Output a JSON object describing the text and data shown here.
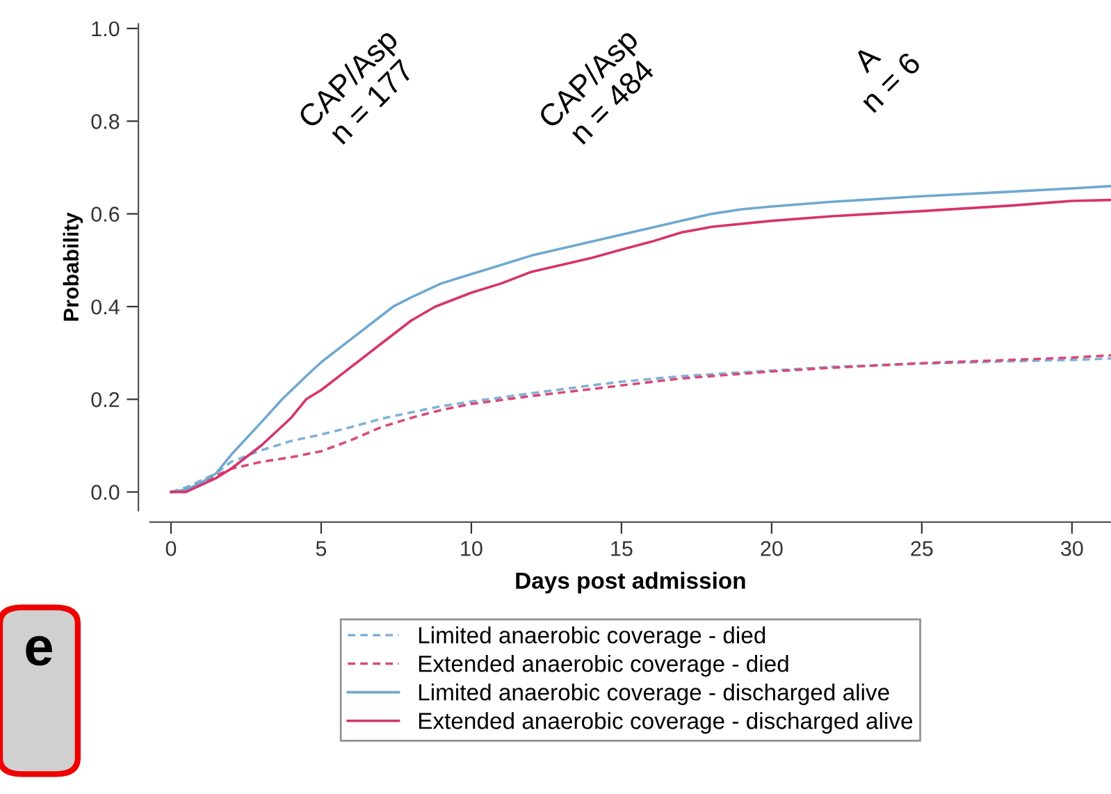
{
  "chart_data": {
    "type": "line",
    "xlabel": "Days post admission",
    "ylabel": "Probability",
    "xlim": [
      -0.7,
      31.3
    ],
    "ylim": [
      -0.04,
      1.01
    ],
    "xticks": [
      0,
      5,
      10,
      15,
      20,
      25,
      30
    ],
    "yticks": [
      {
        "value": 0,
        "label": "0.0"
      },
      {
        "value": 0.2,
        "label": "0.2"
      },
      {
        "value": 0.4,
        "label": "0.4"
      },
      {
        "value": 0.6,
        "label": "0.6"
      },
      {
        "value": 0.8,
        "label": "0.8"
      },
      {
        "value": 1,
        "label": "1.0"
      }
    ],
    "grid": false,
    "legend": "bottom",
    "marker": "none",
    "annotations": [
      "CAP/Asp\nn = 177",
      "CAP/Asp\nn = 484",
      "A\nn = 6",
      "e"
    ],
    "series": [
      {
        "name": "Limited anaerobic coverage - died",
        "color": "#7fb2d8",
        "line_style": "dashed",
        "x": [
          0,
          0.5,
          1,
          1.5,
          2,
          3,
          4,
          5,
          6,
          7,
          8,
          9,
          10,
          12,
          14,
          15,
          17,
          20,
          22,
          25,
          28,
          30,
          31.3
        ],
        "values": [
          0,
          0.01,
          0.025,
          0.04,
          0.065,
          0.09,
          0.11,
          0.124,
          0.14,
          0.158,
          0.172,
          0.185,
          0.195,
          0.213,
          0.23,
          0.238,
          0.25,
          0.262,
          0.27,
          0.277,
          0.282,
          0.285,
          0.288
        ]
      },
      {
        "name": "Extended anaerobic coverage - died",
        "color": "#d8497a",
        "line_style": "dashed",
        "x": [
          0,
          0.5,
          1,
          1.5,
          2,
          3,
          4,
          5,
          6,
          7,
          8,
          9,
          10,
          12,
          14,
          15,
          17,
          20,
          22,
          25,
          28,
          30,
          31.3
        ],
        "values": [
          0,
          0.005,
          0.02,
          0.035,
          0.05,
          0.065,
          0.075,
          0.088,
          0.112,
          0.14,
          0.16,
          0.177,
          0.19,
          0.207,
          0.222,
          0.23,
          0.245,
          0.26,
          0.268,
          0.278,
          0.285,
          0.29,
          0.295
        ]
      },
      {
        "name": "Limited anaerobic coverage - discharged alive",
        "color": "#6fa8d0",
        "line_style": "solid",
        "x": [
          0,
          0.5,
          1,
          1.5,
          2,
          3,
          3.7,
          4.5,
          5,
          6,
          7,
          7.4,
          8,
          9,
          10,
          11,
          12,
          13,
          14,
          15,
          16,
          17,
          18,
          19,
          20,
          22,
          25,
          28,
          30,
          31.3
        ],
        "values": [
          0,
          0.005,
          0.02,
          0.04,
          0.08,
          0.15,
          0.2,
          0.25,
          0.28,
          0.33,
          0.38,
          0.4,
          0.42,
          0.45,
          0.47,
          0.49,
          0.51,
          0.525,
          0.54,
          0.555,
          0.57,
          0.585,
          0.6,
          0.61,
          0.616,
          0.626,
          0.638,
          0.648,
          0.655,
          0.66
        ]
      },
      {
        "name": "Extended anaerobic coverage - discharged alive",
        "color": "#d6336c",
        "line_style": "solid",
        "x": [
          0,
          0.5,
          1,
          1.5,
          2,
          3,
          4,
          4.5,
          5,
          6,
          7,
          8,
          8.8,
          10,
          11,
          12,
          13,
          14,
          15,
          16,
          17,
          18,
          20,
          22,
          25,
          28,
          30,
          31.3
        ],
        "values": [
          0,
          0,
          0.015,
          0.03,
          0.05,
          0.1,
          0.16,
          0.2,
          0.22,
          0.27,
          0.32,
          0.37,
          0.4,
          0.43,
          0.45,
          0.475,
          0.49,
          0.505,
          0.523,
          0.54,
          0.56,
          0.572,
          0.585,
          0.595,
          0.606,
          0.618,
          0.628,
          0.63
        ]
      }
    ]
  }
}
